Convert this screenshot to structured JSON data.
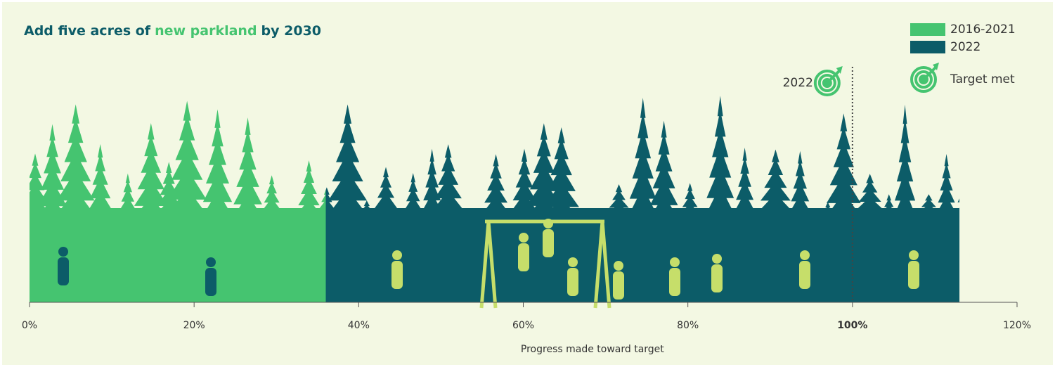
{
  "chart_data": {
    "type": "bar",
    "orientation": "horizontal",
    "stacked": true,
    "title_parts": [
      "Add five acres of",
      "new parkland",
      "by 2030"
    ],
    "title_color": "#0c5c68",
    "series": [
      {
        "name": "2016-2021",
        "color": "#45c470",
        "values": [
          36
        ]
      },
      {
        "name": "2022",
        "color": "#0c5c68",
        "values": [
          77
        ]
      }
    ],
    "xlim": [
      0,
      120
    ],
    "xticks": [
      {
        "value": 0,
        "label": "0%"
      },
      {
        "value": 20,
        "label": "20%"
      },
      {
        "value": 40,
        "label": "40%"
      },
      {
        "value": 60,
        "label": "60%"
      },
      {
        "value": 80,
        "label": "80%"
      },
      {
        "value": 100,
        "label": "100%"
      },
      {
        "value": 120,
        "label": "120%"
      }
    ],
    "xlabel": "Progress made toward target",
    "target": 100,
    "annotation": "2022",
    "target_legend": "Target met"
  }
}
